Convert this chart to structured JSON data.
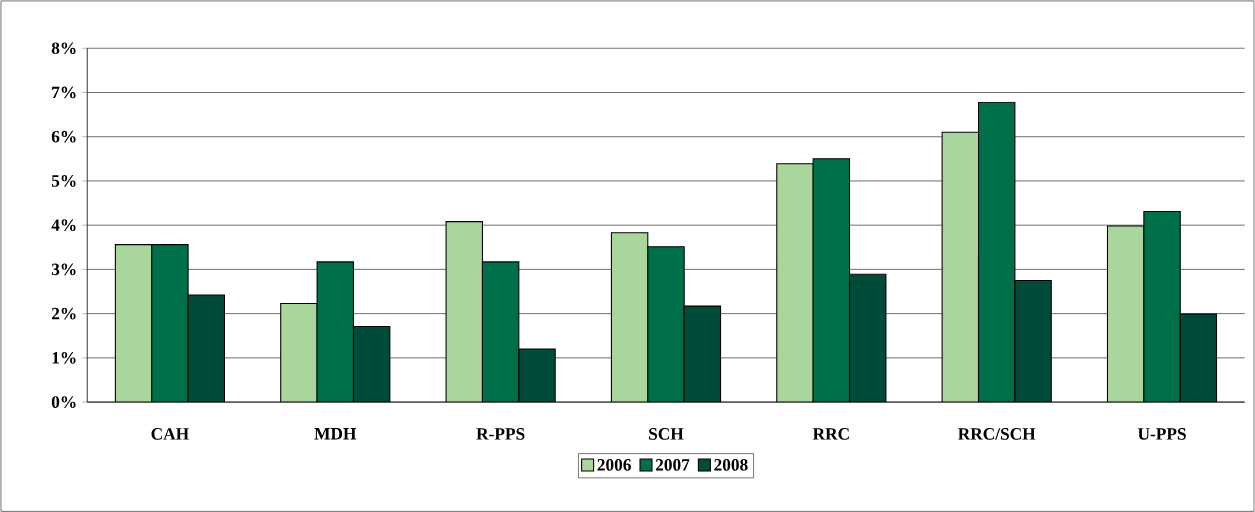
{
  "chart_data": {
    "type": "bar",
    "categories": [
      "CAH",
      "MDH",
      "R-PPS",
      "SCH",
      "RRC",
      "RRC/SCH",
      "U-PPS"
    ],
    "series": [
      {
        "name": "2006",
        "color": "#a8d69c",
        "values": [
          3.56,
          2.23,
          4.08,
          3.83,
          5.39,
          6.1,
          3.98
        ]
      },
      {
        "name": "2007",
        "color": "#00704a",
        "values": [
          3.56,
          3.17,
          3.17,
          3.51,
          5.5,
          6.78,
          4.31
        ]
      },
      {
        "name": "2008",
        "color": "#004b3a",
        "values": [
          2.42,
          1.71,
          1.2,
          2.17,
          2.89,
          2.75,
          1.99
        ]
      }
    ],
    "ylim": [
      0,
      8
    ],
    "yticks": [
      {
        "value": 0,
        "label": "0%"
      },
      {
        "value": 1,
        "label": "1%"
      },
      {
        "value": 2,
        "label": "2%"
      },
      {
        "value": 3,
        "label": "3%"
      },
      {
        "value": 4,
        "label": "4%"
      },
      {
        "value": 5,
        "label": "5%"
      },
      {
        "value": 6,
        "label": "6%"
      },
      {
        "value": 7,
        "label": "7%"
      },
      {
        "value": 8,
        "label": "8%"
      }
    ],
    "grid": "y",
    "legend": "bottom"
  }
}
